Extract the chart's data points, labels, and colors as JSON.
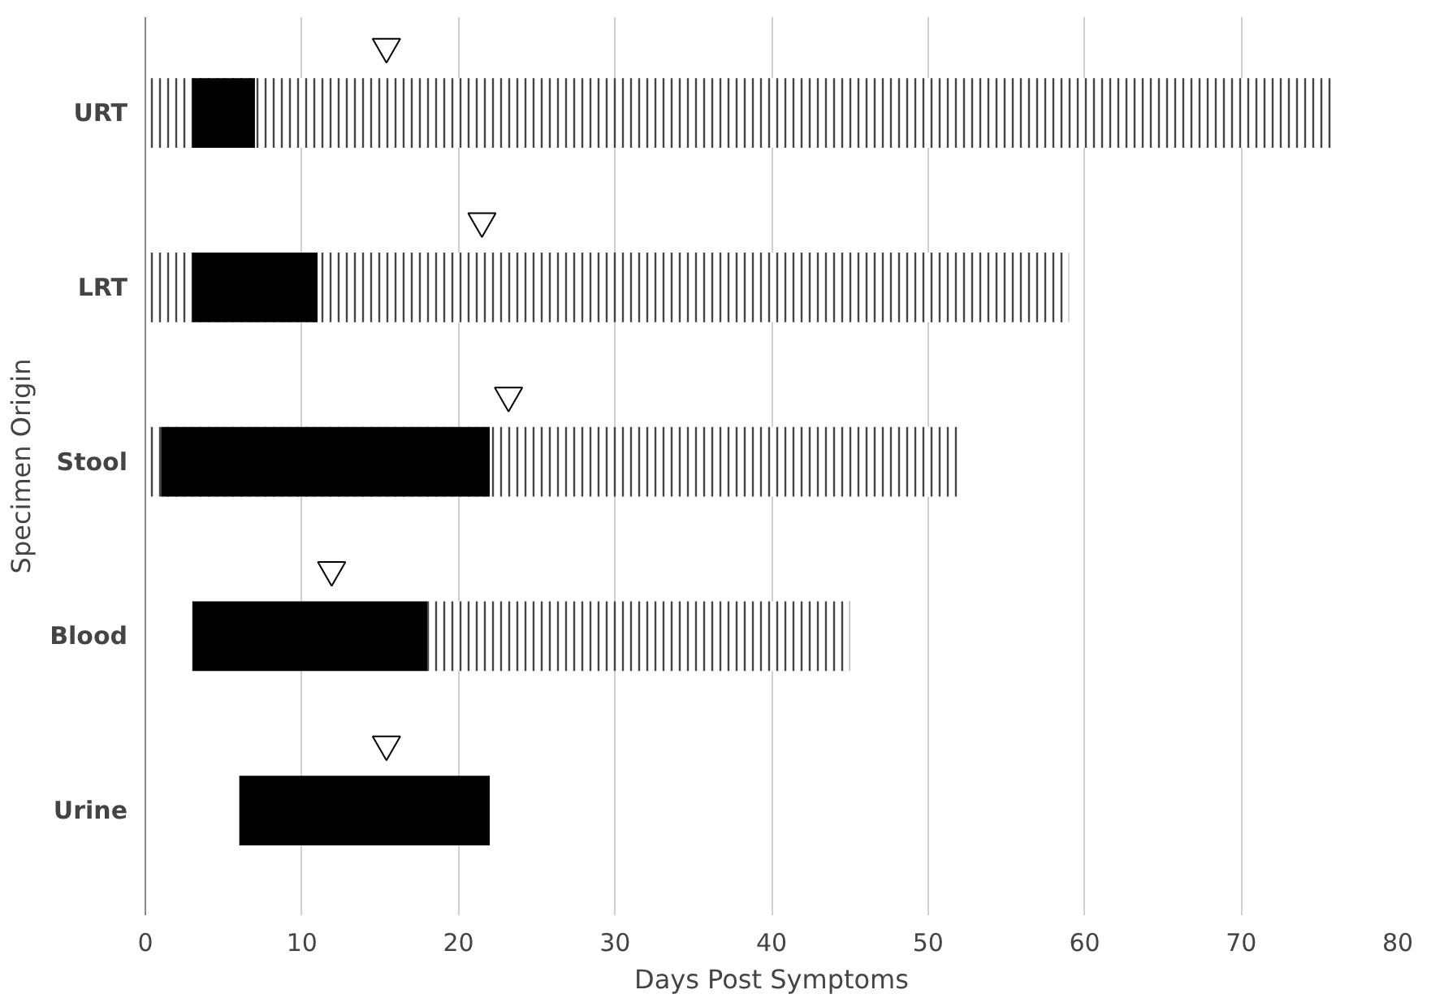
{
  "chart_data": {
    "type": "bar",
    "orientation": "horizontal",
    "xlabel": "Days Post Symptoms",
    "ylabel": "Specimen Origin",
    "categories": [
      "URT",
      "LRT",
      "Stool",
      "Blood",
      "Urine"
    ],
    "series": [
      {
        "color": "#444444",
        "base": [
          0,
          0,
          0,
          18,
          null
        ],
        "values": [
          76,
          59,
          52,
          27,
          null
        ]
      },
      {
        "color": "#000000",
        "base": [
          3,
          3,
          1,
          3,
          6
        ],
        "values": [
          4,
          8,
          21,
          15,
          16
        ]
      },
      {
        "type": "scatter",
        "marker": "triangle",
        "color": "#ffffff",
        "values": [
          15.4,
          21.5,
          23.2,
          11.9,
          15.4
        ]
      }
    ],
    "xlim": [
      0,
      80
    ],
    "xticks": [
      0,
      10,
      20,
      30,
      40,
      50,
      60,
      70,
      80
    ],
    "grid": "x"
  }
}
